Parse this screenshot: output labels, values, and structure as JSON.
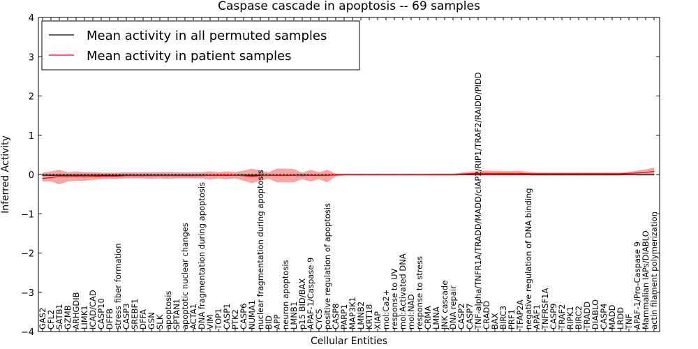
{
  "chart_data": {
    "type": "line",
    "title": "Caspase cascade in apoptosis -- 69 samples",
    "xlabel": "Cellular Entities",
    "ylabel": "Inferred Activity",
    "ylim": [
      -4,
      4
    ],
    "yticks": [
      -4,
      -3,
      -2,
      -1,
      0,
      1,
      2,
      3,
      4
    ],
    "ytick_labels": [
      "−4",
      "−3",
      "−2",
      "−1",
      "0",
      "1",
      "2",
      "3",
      "4"
    ],
    "legend_position": "top-left",
    "categories": [
      "GAS2",
      "CFL2",
      "SATB1",
      "GZMB",
      "ARHGDIB",
      "LIMK1",
      "ICAD/CAD",
      "CASP10",
      "DFFB",
      "stress fiber formation",
      "CASP3",
      "SREBF1",
      "DFFA",
      "GSN",
      "SLK",
      "apoptosis",
      "SPTAN1",
      "apoptotic nuclear changes",
      "ACTA1",
      "DNA fragmentation during apoptosis",
      "VIM",
      "TOP1",
      "CASP1",
      "PTK2",
      "CASP6",
      "NUMA1",
      "nuclear fragmentation during apoptosis",
      "BID",
      "APP",
      "neuron apoptosis",
      "LMNB1",
      "p15 BID/BAX",
      "APAF-1/Caspase 9",
      "CYCS",
      "positive regulation of apoptosis",
      "CASP8",
      "PARP1",
      "MAP3K1",
      "LMNB2",
      "KRT18",
      "XIAP",
      "mol:Ca2+",
      "response to UV",
      "mol:Activated DNA",
      "mol:NAD",
      "response to stress",
      "CRMA",
      "LMNA",
      "JNK cascade",
      "DNA repair",
      "CASP2",
      "CASP7",
      "TNF-alpha/TNFR1A/TRADD/MADD/cIAP2/RIP1/TRAF2/RAIDD/PIDD",
      "CRADD",
      "BAX",
      "BIRC3",
      "PRF1",
      "TFAP2A",
      "negative regulation of DNA binding",
      "APAF1",
      "TNFRSF1A",
      "CASP9",
      "TRAF2",
      "RIPK1",
      "BIRC2",
      "TRADD",
      "DIABLO",
      "CASP4",
      "MADD",
      "LRDD",
      "TNF",
      "APAF-1/Pro-Caspase 9",
      "Mammalian IAPs/DIABLO",
      "actin filament polymerization"
    ],
    "series": [
      {
        "name": "Mean activity in all permuted samples",
        "color": "#000000",
        "values": [
          -0.02,
          -0.02,
          -0.02,
          -0.02,
          -0.02,
          -0.02,
          -0.02,
          -0.02,
          -0.02,
          -0.02,
          -0.02,
          -0.02,
          -0.02,
          -0.02,
          -0.02,
          -0.02,
          -0.02,
          -0.02,
          -0.02,
          -0.02,
          -0.02,
          -0.02,
          -0.02,
          -0.02,
          -0.02,
          -0.02,
          -0.02,
          -0.02,
          -0.02,
          -0.02,
          -0.02,
          -0.02,
          -0.02,
          -0.02,
          -0.02,
          -0.01,
          0,
          0,
          0,
          0,
          0,
          0,
          0,
          0,
          0,
          0,
          0,
          0,
          0,
          0,
          0,
          0,
          0,
          0,
          0,
          0,
          0,
          0,
          0,
          0,
          0,
          0,
          0,
          0,
          0,
          0,
          0,
          0,
          0,
          0,
          0,
          0,
          0,
          0
        ],
        "band": [
          0.05,
          0.05,
          0.05,
          0.05,
          0.05,
          0.05,
          0.05,
          0.05,
          0.05,
          0.05,
          0.05,
          0.05,
          0.05,
          0.05,
          0.05,
          0.05,
          0.05,
          0.05,
          0.05,
          0.05,
          0.05,
          0.05,
          0.05,
          0.05,
          0.05,
          0.05,
          0.05,
          0.05,
          0.05,
          0.05,
          0.05,
          0.05,
          0.05,
          0.05,
          0.05,
          0.04,
          0.03,
          0.03,
          0.03,
          0.03,
          0.03,
          0.03,
          0.03,
          0.03,
          0.03,
          0.03,
          0.03,
          0.03,
          0.03,
          0.03,
          0.03,
          0.03,
          0.04,
          0.04,
          0.04,
          0.04,
          0.04,
          0.04,
          0.04,
          0.04,
          0.04,
          0.04,
          0.04,
          0.04,
          0.04,
          0.04,
          0.04,
          0.04,
          0.04,
          0.04,
          0.04,
          0.04,
          0.04,
          0.04
        ]
      },
      {
        "name": "Mean activity in patient samples",
        "color": "#ff0000",
        "band_color": "#f08080",
        "values": [
          -0.1,
          -0.08,
          -0.05,
          -0.06,
          -0.05,
          -0.06,
          -0.05,
          -0.04,
          -0.04,
          -0.04,
          -0.03,
          -0.03,
          -0.03,
          -0.03,
          -0.03,
          -0.03,
          -0.03,
          -0.03,
          -0.03,
          -0.03,
          -0.02,
          -0.02,
          -0.01,
          -0.02,
          -0.03,
          -0.05,
          -0.03,
          -0.02,
          -0.02,
          -0.02,
          -0.02,
          -0.03,
          -0.02,
          -0.02,
          -0.02,
          -0.01,
          0,
          0,
          0,
          0,
          0,
          0,
          0,
          0,
          0,
          0,
          0,
          0,
          0,
          0,
          0.01,
          0.02,
          0.03,
          0.03,
          0.03,
          0.03,
          0.03,
          0.03,
          0.02,
          0.02,
          0.02,
          0.02,
          0.02,
          0.02,
          0.02,
          0.02,
          0.02,
          0.02,
          0.02,
          0.02,
          0.03,
          0.04,
          0.05,
          0.08
        ],
        "upper": [
          0.05,
          0.08,
          0.12,
          0.06,
          0.08,
          0.06,
          0.06,
          0.05,
          0.05,
          0.05,
          0.06,
          0.06,
          0.06,
          0.06,
          0.06,
          0.07,
          0.06,
          0.06,
          0.06,
          0.06,
          0.08,
          0.06,
          0.08,
          0.06,
          0.1,
          0.15,
          0.1,
          0.06,
          0.15,
          0.15,
          0.14,
          0.05,
          0.12,
          0.06,
          0.12,
          0.02,
          0.01,
          0.01,
          0.01,
          0.01,
          0.01,
          0.01,
          0.01,
          0.01,
          0.01,
          0.01,
          0.01,
          0.02,
          0.02,
          0.02,
          0.05,
          0.07,
          0.09,
          0.1,
          0.09,
          0.09,
          0.09,
          0.09,
          0.07,
          0.05,
          0.05,
          0.05,
          0.05,
          0.05,
          0.05,
          0.05,
          0.05,
          0.05,
          0.05,
          0.05,
          0.07,
          0.1,
          0.13,
          0.18
        ],
        "lower": [
          -0.18,
          -0.18,
          -0.25,
          -0.18,
          -0.16,
          -0.16,
          -0.14,
          -0.12,
          -0.11,
          -0.11,
          -0.1,
          -0.1,
          -0.1,
          -0.11,
          -0.1,
          -0.11,
          -0.1,
          -0.1,
          -0.1,
          -0.1,
          -0.13,
          -0.1,
          -0.12,
          -0.1,
          -0.16,
          -0.22,
          -0.16,
          -0.11,
          -0.2,
          -0.2,
          -0.2,
          -0.12,
          -0.18,
          -0.12,
          -0.2,
          -0.04,
          -0.02,
          -0.02,
          -0.02,
          -0.02,
          -0.02,
          -0.02,
          -0.02,
          -0.02,
          -0.02,
          -0.02,
          -0.02,
          -0.02,
          -0.02,
          -0.02,
          -0.02,
          -0.02,
          -0.02,
          -0.02,
          -0.02,
          -0.02,
          -0.02,
          -0.02,
          -0.02,
          -0.02,
          -0.02,
          -0.02,
          -0.02,
          -0.02,
          -0.02,
          -0.02,
          -0.02,
          -0.02,
          -0.02,
          -0.02,
          -0.01,
          -0.01,
          -0.01,
          0
        ]
      }
    ]
  }
}
